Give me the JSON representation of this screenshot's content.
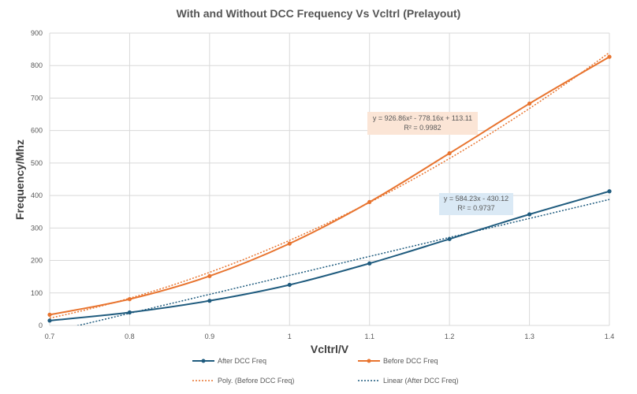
{
  "chart_data": {
    "type": "line",
    "title": "With and Without DCC Frequency Vs Vcltrl (Prelayout)",
    "xlabel": "Vcltrl/V",
    "ylabel": "Frequency/Mhz",
    "xlim": [
      0.7,
      1.4
    ],
    "ylim": [
      0,
      900
    ],
    "x_ticks": [
      "0.7",
      "0.8",
      "0.9",
      "1",
      "1.1",
      "1.2",
      "1.3",
      "1.4"
    ],
    "y_ticks": [
      "0",
      "100",
      "200",
      "300",
      "400",
      "500",
      "600",
      "700",
      "800",
      "900"
    ],
    "grid": true,
    "legend_position": "bottom",
    "x": [
      0.7,
      0.8,
      0.9,
      1.0,
      1.1,
      1.2,
      1.3,
      1.4
    ],
    "series": [
      {
        "name": "After DCC Freq",
        "color": "#1f5b7e",
        "values": [
          15,
          40,
          76,
          125,
          191,
          266,
          342,
          413
        ]
      },
      {
        "name": "Before DCC Freq",
        "color": "#e8742f",
        "values": [
          33,
          81,
          152,
          252,
          380,
          530,
          683,
          827
        ]
      }
    ],
    "trendlines": [
      {
        "name": "Poly. (Before DCC Freq)",
        "of": "Before DCC Freq",
        "kind": "poly2",
        "color": "#e8742f",
        "coefficients": [
          926.86,
          -778.16,
          113.11
        ],
        "equation": "y = 926.86x² - 778.16x + 113.11",
        "r2": "R² = 0.9982"
      },
      {
        "name": "Linear (After DCC Freq)",
        "of": "After DCC Freq",
        "kind": "linear",
        "color": "#1f5b7e",
        "coefficients": [
          584.23,
          -430.12
        ],
        "equation": "y = 584.23x - 430.12",
        "r2": "R² = 0.9737"
      }
    ]
  }
}
